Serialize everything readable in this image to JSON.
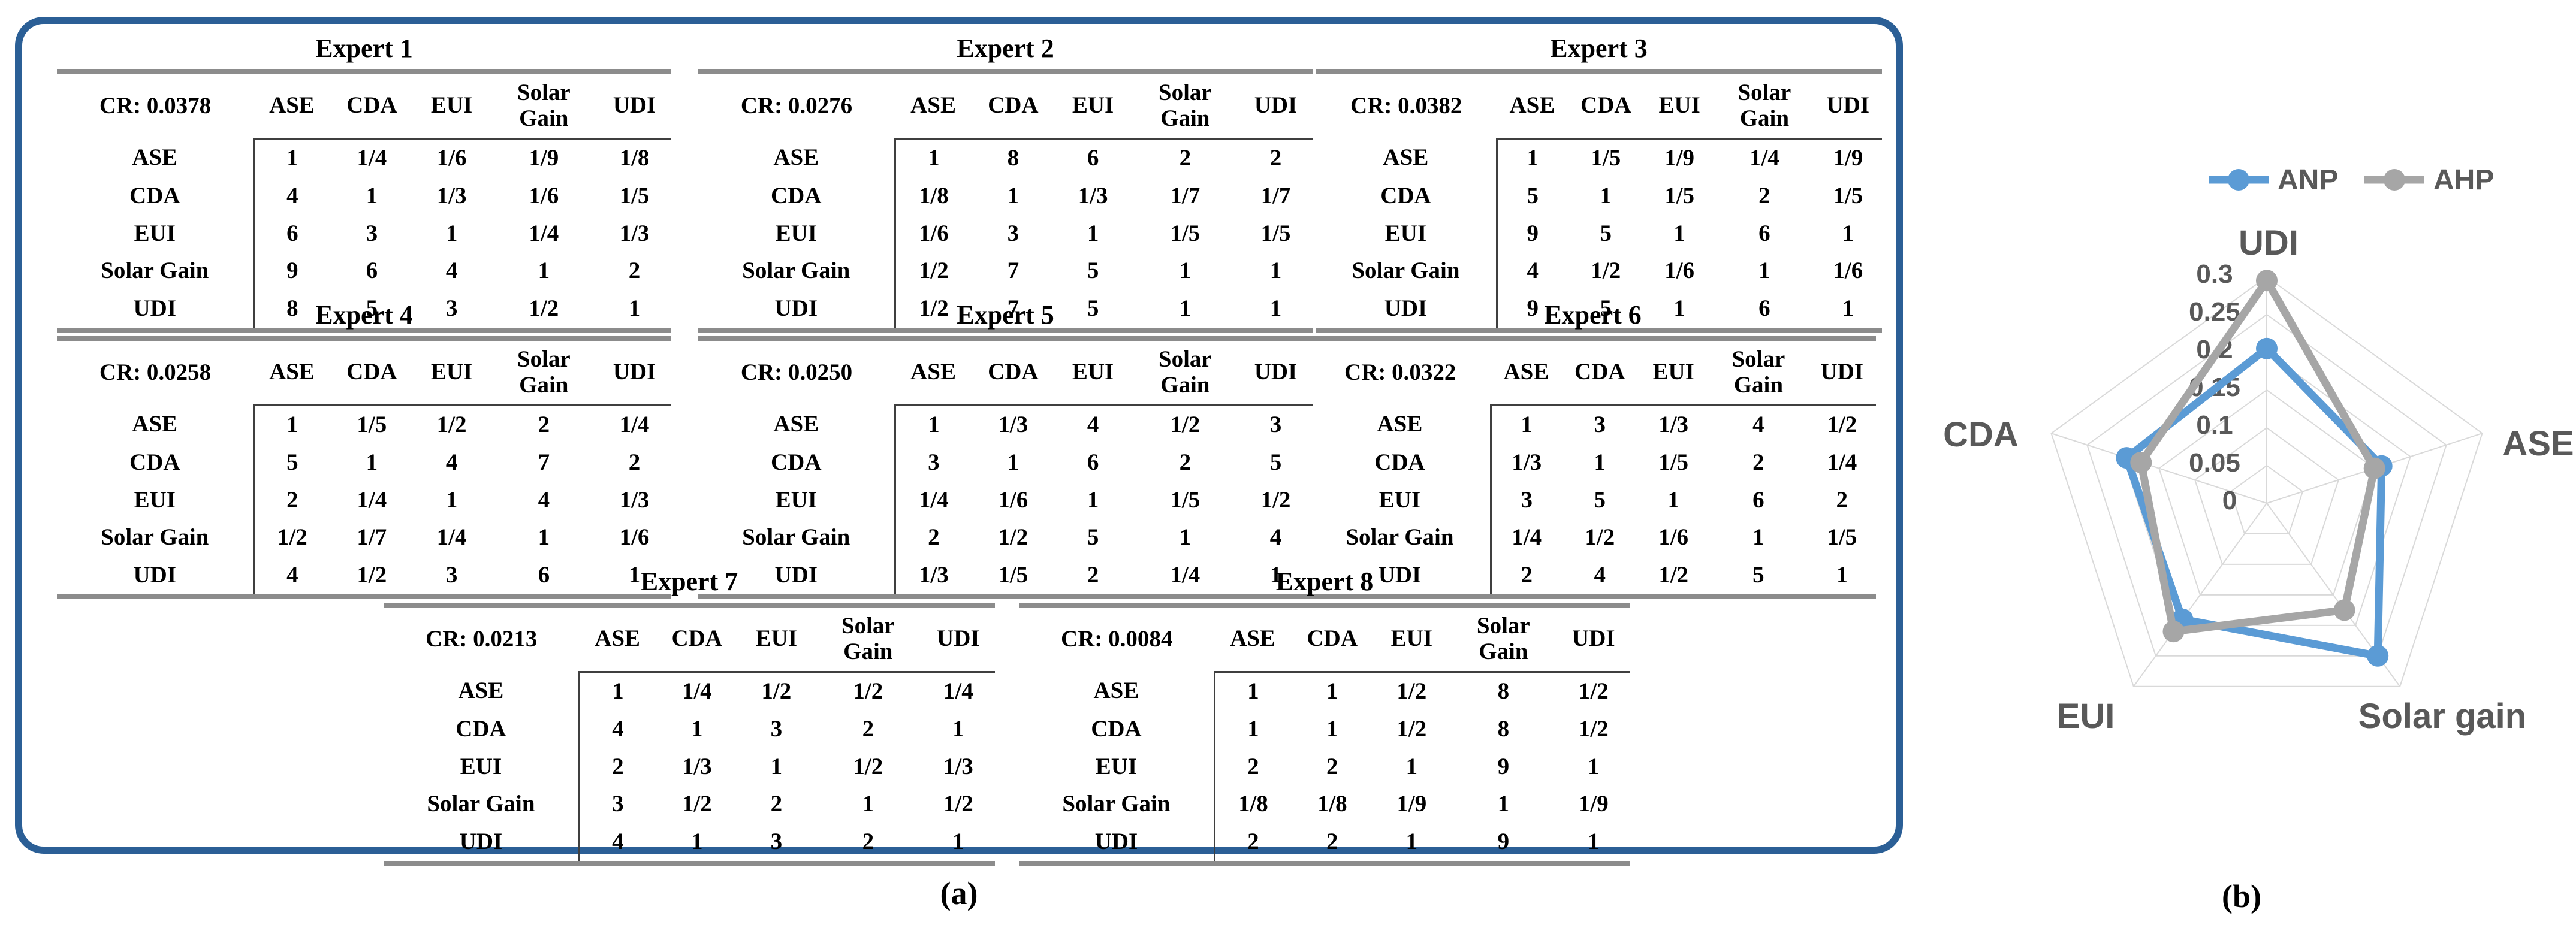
{
  "figure": {
    "caption_a": "(a)",
    "caption_b": "(b)"
  },
  "panel_a": {
    "criteria": [
      "ASE",
      "CDA",
      "EUI",
      "Solar Gain",
      "UDI"
    ],
    "row_labels": [
      "ASE",
      "CDA",
      "EUI",
      "Solar Gain",
      "UDI"
    ],
    "experts": [
      {
        "title": "Expert 1",
        "cr_label": "CR: 0.0378",
        "rows": [
          [
            "1",
            "1/4",
            "1/6",
            "1/9",
            "1/8"
          ],
          [
            "4",
            "1",
            "1/3",
            "1/6",
            "1/5"
          ],
          [
            "6",
            "3",
            "1",
            "1/4",
            "1/3"
          ],
          [
            "9",
            "6",
            "4",
            "1",
            "2"
          ],
          [
            "8",
            "5",
            "3",
            "1/2",
            "1"
          ]
        ]
      },
      {
        "title": "Expert 2",
        "cr_label": "CR: 0.0276",
        "rows": [
          [
            "1",
            "8",
            "6",
            "2",
            "2"
          ],
          [
            "1/8",
            "1",
            "1/3",
            "1/7",
            "1/7"
          ],
          [
            "1/6",
            "3",
            "1",
            "1/5",
            "1/5"
          ],
          [
            "1/2",
            "7",
            "5",
            "1",
            "1"
          ],
          [
            "1/2",
            "7",
            "5",
            "1",
            "1"
          ]
        ]
      },
      {
        "title": "Expert 3",
        "cr_label": "CR: 0.0382",
        "rows": [
          [
            "1",
            "1/5",
            "1/9",
            "1/4",
            "1/9"
          ],
          [
            "5",
            "1",
            "1/5",
            "2",
            "1/5"
          ],
          [
            "9",
            "5",
            "1",
            "6",
            "1"
          ],
          [
            "4",
            "1/2",
            "1/6",
            "1",
            "1/6"
          ],
          [
            "9",
            "5",
            "1",
            "6",
            "1"
          ]
        ]
      },
      {
        "title": "Expert 4",
        "cr_label": "CR: 0.0258",
        "rows": [
          [
            "1",
            "1/5",
            "1/2",
            "2",
            "1/4"
          ],
          [
            "5",
            "1",
            "4",
            "7",
            "2"
          ],
          [
            "2",
            "1/4",
            "1",
            "4",
            "1/3"
          ],
          [
            "1/2",
            "1/7",
            "1/4",
            "1",
            "1/6"
          ],
          [
            "4",
            "1/2",
            "3",
            "6",
            "1"
          ]
        ]
      },
      {
        "title": "Expert 5",
        "cr_label": "CR: 0.0250",
        "rows": [
          [
            "1",
            "1/3",
            "4",
            "1/2",
            "3"
          ],
          [
            "3",
            "1",
            "6",
            "2",
            "5"
          ],
          [
            "1/4",
            "1/6",
            "1",
            "1/5",
            "1/2"
          ],
          [
            "2",
            "1/2",
            "5",
            "1",
            "4"
          ],
          [
            "1/3",
            "1/5",
            "2",
            "1/4",
            "1"
          ]
        ]
      },
      {
        "title": "Expert 6",
        "cr_label": "CR: 0.0322",
        "rows": [
          [
            "1",
            "3",
            "1/3",
            "4",
            "1/2"
          ],
          [
            "1/3",
            "1",
            "1/5",
            "2",
            "1/4"
          ],
          [
            "3",
            "5",
            "1",
            "6",
            "2"
          ],
          [
            "1/4",
            "1/2",
            "1/6",
            "1",
            "1/5"
          ],
          [
            "2",
            "4",
            "1/2",
            "5",
            "1"
          ]
        ]
      },
      {
        "title": "Expert 7",
        "cr_label": "CR: 0.0213",
        "rows": [
          [
            "1",
            "1/4",
            "1/2",
            "1/2",
            "1/4"
          ],
          [
            "4",
            "1",
            "3",
            "2",
            "1"
          ],
          [
            "2",
            "1/3",
            "1",
            "1/2",
            "1/3"
          ],
          [
            "3",
            "1/2",
            "2",
            "1",
            "1/2"
          ],
          [
            "4",
            "1",
            "3",
            "2",
            "1"
          ]
        ]
      },
      {
        "title": "Expert 8",
        "cr_label": "CR: 0.0084",
        "rows": [
          [
            "1",
            "1",
            "1/2",
            "8",
            "1/2"
          ],
          [
            "1",
            "1",
            "1/2",
            "8",
            "1/2"
          ],
          [
            "2",
            "2",
            "1",
            "9",
            "1"
          ],
          [
            "1/8",
            "1/8",
            "1/9",
            "1",
            "1/9"
          ],
          [
            "2",
            "2",
            "1",
            "9",
            "1"
          ]
        ]
      }
    ]
  },
  "chart_data": {
    "type": "radar",
    "title": "",
    "categories": [
      "UDI",
      "ASE",
      "Solar gain",
      "EUI",
      "CDA"
    ],
    "series": [
      {
        "name": "ANP",
        "color": "#5B9BD5",
        "values": [
          0.205,
          0.16,
          0.25,
          0.19,
          0.195
        ]
      },
      {
        "name": "AHP",
        "color": "#A6A6A6",
        "values": [
          0.295,
          0.15,
          0.175,
          0.21,
          0.175
        ]
      }
    ],
    "ticks": [
      0,
      0.05,
      0.1,
      0.15,
      0.2,
      0.25,
      0.3
    ],
    "tick_labels": [
      "0",
      "0.05",
      "0.1",
      "0.15",
      "0.2",
      "0.25",
      "0.3"
    ],
    "rmax": 0.3,
    "grid": true,
    "legend_position": "top"
  },
  "colors": {
    "panel_border": "#2b5f96",
    "table_thick_rule": "#8c8c8c",
    "table_thin_line": "#3f3f3f",
    "radar_grid": "#d9d9d9",
    "radar_text": "#595959",
    "anp": "#5B9BD5",
    "ahp": "#A6A6A6"
  }
}
